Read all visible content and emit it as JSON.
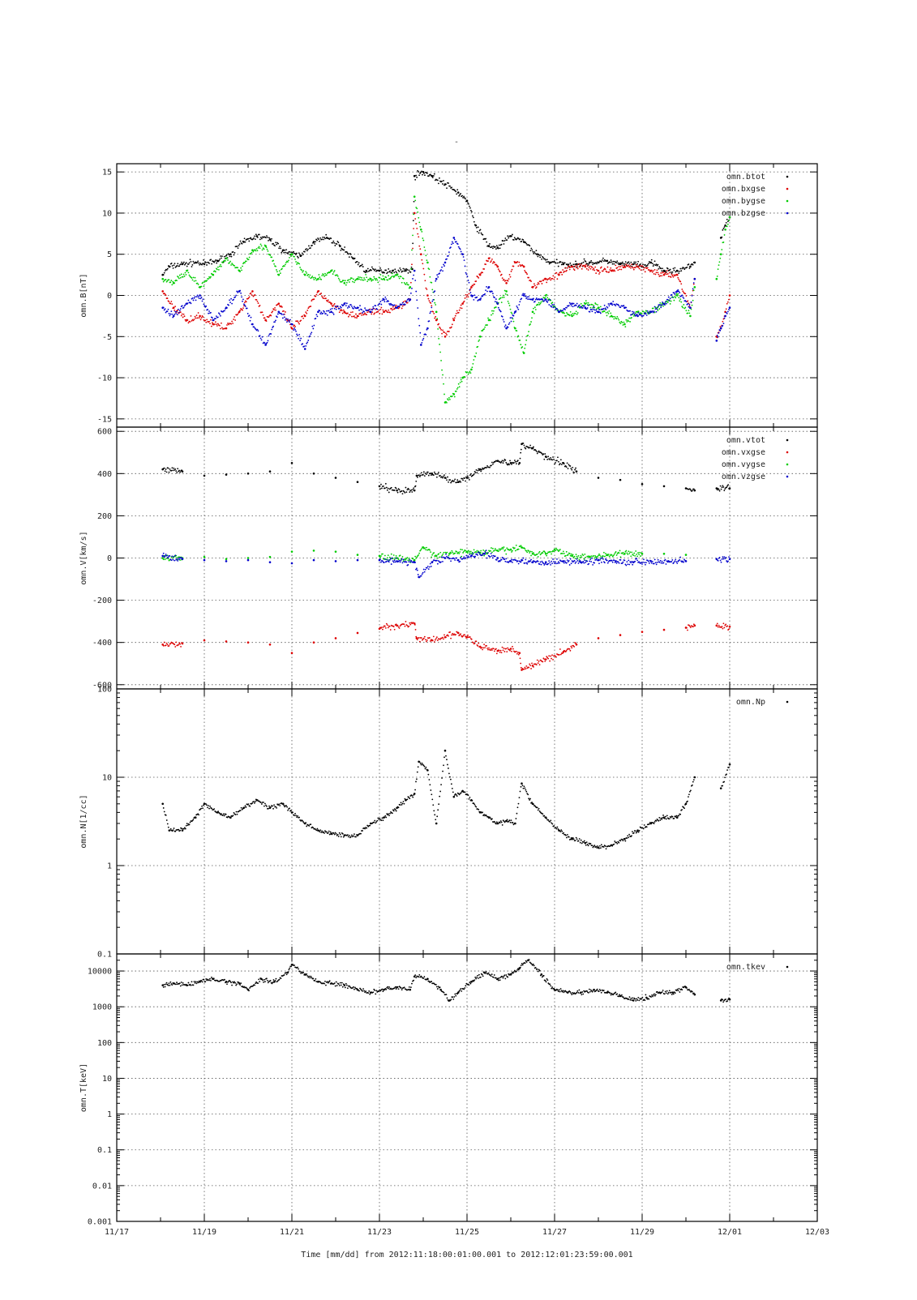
{
  "page": {
    "top_mark": "-"
  },
  "chart_data": [
    {
      "type": "scatter",
      "ylabel": "omn.B[nT]",
      "yscale": "linear",
      "ylim": [
        -16,
        16
      ],
      "yticks": [
        15,
        10,
        5,
        0,
        -5,
        -10,
        -15
      ],
      "ytick_labels": [
        "15",
        "10",
        "5",
        "0",
        "-5",
        "-10",
        "-15"
      ],
      "grid": true,
      "legend_position": "top-right",
      "series": [
        {
          "name": "omn.btot",
          "color": "#000000",
          "x": [
            1.05,
            1.2,
            1.5,
            1.8,
            2.0,
            2.3,
            2.6,
            2.9,
            3.2,
            3.5,
            3.8,
            4.0,
            4.2,
            4.5,
            4.8,
            5.1,
            5.4,
            5.7,
            6.0,
            6.3,
            6.6,
            6.75,
            6.8,
            7.0,
            7.2,
            7.5,
            7.8,
            8.0,
            8.2,
            8.5,
            8.7,
            9.0,
            9.3,
            9.6,
            9.9,
            10.2,
            10.5,
            10.8,
            11.0,
            11.2,
            11.5,
            11.8,
            12.0,
            12.2,
            12.5,
            12.8,
            13.1,
            13.2,
            13.8,
            13.9,
            14.0
          ],
          "y": [
            2.5,
            3.5,
            3.8,
            4.0,
            3.8,
            4.2,
            5.0,
            6.5,
            7.2,
            6.8,
            5.5,
            5.0,
            4.8,
            6.5,
            7.0,
            6.0,
            4.5,
            3.0,
            3.0,
            3.0,
            3.0,
            3.2,
            14.5,
            15.0,
            14.5,
            13.5,
            12.5,
            11.5,
            8.5,
            6.0,
            5.8,
            7.2,
            6.5,
            5.0,
            4.0,
            3.8,
            3.8,
            4.0,
            4.0,
            4.2,
            3.8,
            3.8,
            3.5,
            4.0,
            3.0,
            3.0,
            3.5,
            4.0,
            7.0,
            8.5,
            9.5
          ]
        },
        {
          "name": "omn.bxgse",
          "color": "#dd0000",
          "x": [
            1.05,
            1.3,
            1.6,
            1.9,
            2.2,
            2.5,
            2.8,
            3.1,
            3.4,
            3.7,
            4.0,
            4.3,
            4.6,
            4.9,
            5.2,
            5.5,
            5.8,
            6.1,
            6.4,
            6.7,
            6.8,
            6.95,
            7.1,
            7.3,
            7.5,
            7.7,
            7.9,
            8.1,
            8.3,
            8.5,
            8.7,
            8.9,
            9.1,
            9.3,
            9.5,
            9.8,
            10.1,
            10.4,
            10.7,
            11.0,
            11.3,
            11.6,
            11.9,
            12.2,
            12.5,
            12.8,
            13.1,
            13.2,
            13.7,
            13.8,
            13.9,
            14.0
          ],
          "y": [
            0.5,
            -1.5,
            -3.0,
            -2.5,
            -3.5,
            -4.0,
            -2.0,
            0.5,
            -3.0,
            -1.0,
            -4.0,
            -2.5,
            0.5,
            -1.0,
            -2.0,
            -2.5,
            -2.0,
            -2.0,
            -1.5,
            -0.5,
            10.0,
            5.0,
            0.0,
            -3.0,
            -5.0,
            -3.0,
            -1.0,
            1.0,
            2.5,
            4.5,
            3.5,
            1.5,
            4.0,
            3.5,
            1.0,
            2.0,
            2.5,
            3.5,
            3.5,
            3.0,
            3.0,
            3.5,
            3.5,
            3.0,
            2.5,
            2.5,
            -1.5,
            2.0,
            -5.0,
            -4.0,
            -2.0,
            0.0
          ]
        },
        {
          "name": "omn.bygse",
          "color": "#00cc00",
          "x": [
            1.05,
            1.3,
            1.6,
            1.9,
            2.2,
            2.5,
            2.8,
            3.1,
            3.4,
            3.7,
            4.0,
            4.3,
            4.6,
            4.9,
            5.2,
            5.5,
            5.8,
            6.1,
            6.4,
            6.7,
            6.8,
            6.95,
            7.1,
            7.3,
            7.5,
            7.7,
            7.9,
            8.1,
            8.3,
            8.5,
            8.7,
            8.9,
            9.1,
            9.3,
            9.5,
            9.8,
            10.1,
            10.4,
            10.7,
            11.0,
            11.3,
            11.6,
            11.9,
            12.2,
            12.5,
            12.8,
            13.1,
            13.2,
            13.7,
            13.8,
            13.9,
            14.0
          ],
          "y": [
            2.0,
            1.5,
            3.0,
            1.0,
            2.5,
            4.5,
            3.0,
            5.5,
            6.0,
            2.5,
            5.0,
            2.5,
            2.0,
            3.0,
            1.5,
            2.0,
            2.0,
            2.0,
            2.5,
            1.0,
            12.0,
            8.0,
            4.0,
            -2.0,
            -13.0,
            -12.0,
            -10.0,
            -9.0,
            -5.0,
            -3.0,
            -1.0,
            0.5,
            -4.0,
            -7.0,
            -2.0,
            0.0,
            -2.0,
            -2.5,
            -1.0,
            -1.5,
            -2.5,
            -3.5,
            -2.0,
            -2.0,
            -1.0,
            0.0,
            -2.5,
            1.0,
            2.0,
            5.0,
            8.0,
            9.5
          ]
        },
        {
          "name": "omn.bzgse",
          "color": "#0000cc",
          "x": [
            1.05,
            1.3,
            1.6,
            1.9,
            2.2,
            2.5,
            2.8,
            3.1,
            3.4,
            3.7,
            4.0,
            4.3,
            4.6,
            4.9,
            5.2,
            5.5,
            5.8,
            6.1,
            6.4,
            6.7,
            6.8,
            6.95,
            7.1,
            7.3,
            7.5,
            7.7,
            7.9,
            8.1,
            8.3,
            8.5,
            8.7,
            8.9,
            9.1,
            9.3,
            9.5,
            9.8,
            10.1,
            10.4,
            10.7,
            11.0,
            11.3,
            11.6,
            11.9,
            12.2,
            12.5,
            12.8,
            13.1,
            13.2,
            13.7,
            13.8,
            13.9,
            14.0
          ],
          "y": [
            -1.5,
            -2.5,
            -1.0,
            0.0,
            -3.0,
            -1.5,
            0.5,
            -3.5,
            -6.0,
            -2.0,
            -3.5,
            -6.5,
            -2.0,
            -2.0,
            -1.0,
            -1.5,
            -2.0,
            -0.5,
            -1.5,
            -0.5,
            3.0,
            -6.0,
            -4.0,
            2.0,
            4.0,
            7.0,
            5.0,
            0.0,
            -0.5,
            1.0,
            -1.0,
            -4.0,
            -2.0,
            0.0,
            -0.5,
            -0.5,
            -2.0,
            -1.0,
            -1.5,
            -2.0,
            -1.0,
            -1.5,
            -2.5,
            -2.0,
            -1.0,
            0.5,
            -1.5,
            2.0,
            -5.5,
            -4.0,
            -2.5,
            -1.5
          ]
        }
      ]
    },
    {
      "type": "scatter",
      "ylabel": "omn.V[km/s]",
      "yscale": "linear",
      "ylim": [
        -620,
        620
      ],
      "yticks": [
        600,
        400,
        200,
        0,
        -200,
        -400,
        -600
      ],
      "ytick_labels": [
        "600",
        "400",
        "200",
        "0",
        "-200",
        "-400",
        "-600"
      ],
      "grid": true,
      "legend_position": "top-right",
      "series": [
        {
          "name": "omn.vtot",
          "color": "#000000",
          "x": [
            1.05,
            1.5,
            2.0,
            2.5,
            3.0,
            3.5,
            4.0,
            4.5,
            5.0,
            5.5,
            6.0,
            6.4,
            6.8,
            6.85,
            7.2,
            7.5,
            7.8,
            8.0,
            8.3,
            8.7,
            9.0,
            9.2,
            9.25,
            9.5,
            9.8,
            10.2,
            10.5,
            11.0,
            11.5,
            12.0,
            12.5,
            13.0,
            13.2,
            13.7,
            14.0
          ],
          "y": [
            420,
            410,
            390,
            395,
            400,
            410,
            450,
            400,
            380,
            360,
            340,
            320,
            320,
            390,
            400,
            380,
            360,
            380,
            420,
            460,
            450,
            450,
            540,
            520,
            480,
            450,
            410,
            380,
            370,
            350,
            340,
            330,
            320,
            330,
            330
          ]
        },
        {
          "name": "omn.vxgse",
          "color": "#dd0000",
          "x": [
            1.05,
            1.5,
            2.0,
            2.5,
            3.0,
            3.5,
            4.0,
            4.5,
            5.0,
            5.5,
            6.0,
            6.4,
            6.8,
            6.85,
            7.2,
            7.5,
            7.8,
            8.0,
            8.3,
            8.7,
            9.0,
            9.2,
            9.25,
            9.5,
            9.8,
            10.2,
            10.5,
            11.0,
            11.5,
            12.0,
            12.5,
            13.0,
            13.2,
            13.7,
            14.0
          ],
          "y": [
            -410,
            -405,
            -390,
            -395,
            -400,
            -410,
            -450,
            -400,
            -380,
            -355,
            -335,
            -320,
            -310,
            -380,
            -390,
            -375,
            -355,
            -375,
            -420,
            -440,
            -430,
            -450,
            -530,
            -510,
            -480,
            -445,
            -410,
            -380,
            -365,
            -350,
            -340,
            -330,
            -320,
            -320,
            -325
          ]
        },
        {
          "name": "omn.vygse",
          "color": "#00cc00",
          "x": [
            1.05,
            1.5,
            2.0,
            2.5,
            3.0,
            3.5,
            4.0,
            4.5,
            5.0,
            5.5,
            6.0,
            6.4,
            6.8,
            7.0,
            7.3,
            7.6,
            8.0,
            8.3,
            8.7,
            9.0,
            9.25,
            9.5,
            9.8,
            10.0,
            10.4,
            10.8,
            11.2,
            11.6,
            12.0,
            12.5,
            13.0
          ],
          "y": [
            0,
            0,
            5,
            -5,
            0,
            5,
            30,
            35,
            30,
            15,
            10,
            0,
            -10,
            50,
            10,
            20,
            30,
            25,
            35,
            40,
            50,
            20,
            20,
            40,
            10,
            5,
            15,
            20,
            20,
            20,
            15
          ]
        },
        {
          "name": "omn.vzgse",
          "color": "#0000cc",
          "x": [
            1.05,
            1.5,
            2.0,
            2.5,
            3.0,
            3.5,
            4.0,
            4.5,
            5.0,
            5.5,
            6.0,
            6.4,
            6.8,
            6.9,
            7.2,
            7.5,
            7.8,
            8.1,
            8.4,
            8.7,
            9.0,
            9.25,
            9.5,
            9.8,
            10.2,
            10.6,
            11.0,
            11.4,
            11.8,
            12.2,
            12.6,
            13.0,
            13.7,
            14.0
          ],
          "y": [
            10,
            -5,
            -10,
            -15,
            -10,
            -20,
            -25,
            -10,
            -15,
            -10,
            -10,
            -15,
            -20,
            -90,
            -20,
            0,
            -10,
            10,
            20,
            0,
            -15,
            -10,
            -20,
            -20,
            -15,
            -20,
            -10,
            -15,
            -20,
            -15,
            -15,
            -15,
            -5,
            -5
          ]
        }
      ]
    },
    {
      "type": "scatter",
      "ylabel": "omn.N[1/cc]",
      "yscale": "log",
      "ylim": [
        0.1,
        100
      ],
      "yticks": [
        100,
        10,
        1,
        0.1
      ],
      "ytick_labels": [
        "100",
        "10",
        "1",
        "0.1"
      ],
      "grid": true,
      "legend_position": "top-right",
      "series": [
        {
          "name": "omn.Np",
          "color": "#000000",
          "x": [
            1.05,
            1.2,
            1.5,
            1.8,
            2.0,
            2.3,
            2.6,
            2.9,
            3.2,
            3.5,
            3.8,
            4.0,
            4.3,
            4.6,
            4.9,
            5.2,
            5.5,
            5.8,
            6.1,
            6.4,
            6.6,
            6.8,
            6.9,
            7.1,
            7.3,
            7.5,
            7.7,
            7.9,
            8.1,
            8.3,
            8.5,
            8.7,
            8.9,
            9.1,
            9.25,
            9.5,
            9.8,
            10.1,
            10.4,
            10.7,
            11.0,
            11.3,
            11.6,
            11.9,
            12.2,
            12.5,
            12.8,
            13.0,
            13.2,
            13.8,
            14.0
          ],
          "y": [
            5.0,
            2.5,
            2.5,
            3.5,
            5.0,
            4.0,
            3.5,
            4.5,
            5.5,
            4.5,
            5.0,
            4.0,
            3.0,
            2.5,
            2.3,
            2.2,
            2.2,
            3.0,
            3.5,
            4.5,
            5.5,
            6.5,
            15.0,
            12.0,
            3.0,
            20.0,
            6.0,
            7.0,
            5.5,
            4.0,
            3.5,
            3.0,
            3.2,
            3.0,
            8.5,
            5.0,
            3.5,
            2.5,
            2.0,
            1.8,
            1.6,
            1.7,
            2.0,
            2.5,
            3.0,
            3.5,
            3.5,
            5.0,
            10.0,
            7.5,
            14.0
          ]
        }
      ]
    },
    {
      "type": "scatter",
      "ylabel": "omn.T[keV]",
      "xlabel": "Time [mm/dd]  from 2012:11:18:00:01:00.001  to  2012:12:01:23:59:00.001",
      "yscale": "log",
      "ylim": [
        0.001,
        30000
      ],
      "yticks": [
        10000,
        1000,
        100,
        10,
        1,
        0.1,
        0.01,
        0.001
      ],
      "ytick_labels": [
        "10000",
        "1000",
        "100",
        "10",
        "1",
        "0.1",
        "0.01",
        "0.001"
      ],
      "grid": true,
      "legend_position": "top-right",
      "x_tick_labels": [
        "11/17",
        "11/19",
        "11/21",
        "11/23",
        "11/25",
        "11/27",
        "11/29",
        "12/01",
        "12/03"
      ],
      "xlim": [
        0,
        16
      ],
      "series": [
        {
          "name": "omn.tkev",
          "color": "#000000",
          "x": [
            1.05,
            1.3,
            1.6,
            1.9,
            2.2,
            2.5,
            2.8,
            3.0,
            3.3,
            3.6,
            3.9,
            4.0,
            4.3,
            4.6,
            4.9,
            5.2,
            5.5,
            5.8,
            6.1,
            6.4,
            6.7,
            6.8,
            7.1,
            7.4,
            7.6,
            7.8,
            8.1,
            8.4,
            8.7,
            9.0,
            9.2,
            9.4,
            9.7,
            10.0,
            10.3,
            10.6,
            10.9,
            11.2,
            11.5,
            11.8,
            12.1,
            12.4,
            12.7,
            13.0,
            13.2,
            13.8,
            14.0
          ],
          "y": [
            4000,
            4500,
            4000,
            5000,
            6000,
            5000,
            4500,
            3000,
            6000,
            5000,
            9000,
            15000,
            8000,
            5000,
            4500,
            4000,
            3000,
            2500,
            3000,
            3500,
            3000,
            7000,
            6000,
            3000,
            1500,
            2500,
            5000,
            9000,
            6000,
            8000,
            12000,
            20000,
            8000,
            3000,
            2500,
            2500,
            3000,
            2500,
            2000,
            1500,
            1800,
            2500,
            2500,
            3500,
            2200,
            1500,
            1600
          ]
        }
      ]
    }
  ]
}
